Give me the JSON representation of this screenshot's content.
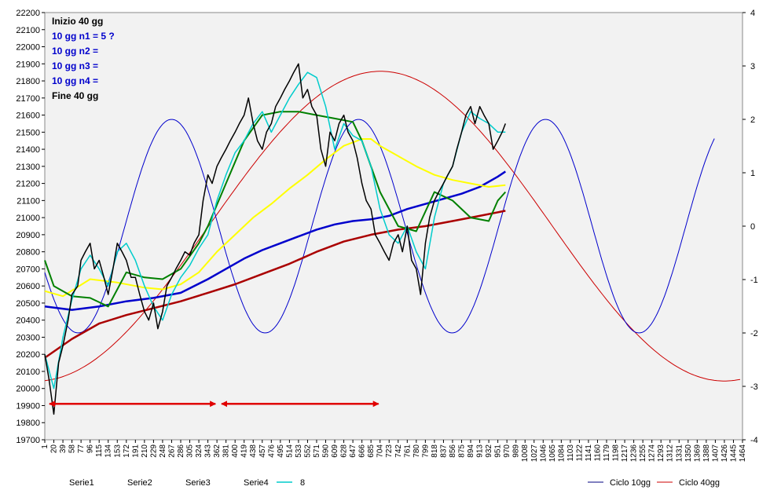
{
  "chart_data": {
    "type": "line",
    "y_left": {
      "min": 19700,
      "max": 22200,
      "step": 100
    },
    "y_right": {
      "min": -4,
      "max": 4,
      "step": 1
    },
    "x_ticks": [
      "1",
      "20",
      "39",
      "58",
      "77",
      "96",
      "115",
      "134",
      "153",
      "172",
      "191",
      "210",
      "229",
      "248",
      "267",
      "286",
      "305",
      "324",
      "343",
      "362",
      "381",
      "400",
      "419",
      "438",
      "457",
      "476",
      "495",
      "514",
      "533",
      "552",
      "571",
      "590",
      "609",
      "628",
      "647",
      "666",
      "685",
      "704",
      "723",
      "742",
      "761",
      "780",
      "799",
      "818",
      "837",
      "856",
      "875",
      "894",
      "913",
      "932",
      "951",
      "970",
      "989",
      "1008",
      "1027",
      "1046",
      "1065",
      "1084",
      "1103",
      "1122",
      "1141",
      "1160",
      "1179",
      "1198",
      "1217",
      "1236",
      "1255",
      "1274",
      "1293",
      "1312",
      "1331",
      "1350",
      "1369",
      "1388",
      "1407",
      "1426",
      "1445",
      "1464"
    ],
    "annotations": [
      {
        "text": "Inizio 40 gg",
        "color": "#000000"
      },
      {
        "text": "10 gg n1 =  5 ?",
        "color": "#0000cc"
      },
      {
        "text": "10 gg n2 =",
        "color": "#0000cc"
      },
      {
        "text": "10 gg n3 =",
        "color": "#0000cc"
      },
      {
        "text": "10 gg n4 =",
        "color": "#0000cc"
      },
      {
        "text": "Fine 40 gg",
        "color": "#000000"
      }
    ],
    "arrows": [
      {
        "from": 1,
        "to": 362,
        "y": 19910,
        "color": "#e00000"
      },
      {
        "from": 362,
        "to": 704,
        "y": 19910,
        "color": "#e00000"
      }
    ],
    "series": [
      {
        "name": "Serie1",
        "color": "#008000",
        "axis": "left",
        "x": [
          1,
          20,
          58,
          96,
          134,
          172,
          210,
          248,
          286,
          324,
          343,
          381,
          419,
          457,
          495,
          533,
          571,
          609,
          647,
          666,
          704,
          742,
          780,
          818,
          856,
          894,
          932,
          951,
          967
        ],
        "values": [
          20750,
          20600,
          20540,
          20530,
          20480,
          20680,
          20650,
          20640,
          20700,
          20850,
          20950,
          21200,
          21450,
          21600,
          21620,
          21620,
          21600,
          21580,
          21560,
          21450,
          21150,
          20950,
          20920,
          21150,
          21100,
          21000,
          20980,
          21100,
          21150
        ]
      },
      {
        "name": "Serie2",
        "color": "#ffff00",
        "axis": "left",
        "x": [
          1,
          39,
          96,
          153,
          210,
          248,
          286,
          324,
          362,
          400,
          438,
          476,
          514,
          552,
          590,
          628,
          666,
          685,
          704,
          742,
          780,
          818,
          856,
          894,
          932,
          967
        ],
        "values": [
          20570,
          20540,
          20640,
          20620,
          20590,
          20580,
          20610,
          20680,
          20800,
          20900,
          21000,
          21080,
          21170,
          21250,
          21340,
          21420,
          21460,
          21460,
          21420,
          21360,
          21300,
          21250,
          21220,
          21200,
          21180,
          21190
        ]
      },
      {
        "name": "Serie3",
        "color": "#0000cc",
        "axis": "left",
        "x": [
          1,
          58,
          115,
          172,
          229,
          286,
          343,
          381,
          419,
          457,
          495,
          533,
          571,
          609,
          647,
          685,
          723,
          761,
          799,
          837,
          875,
          913,
          951,
          967
        ],
        "values": [
          20480,
          20460,
          20480,
          20510,
          20530,
          20560,
          20640,
          20700,
          20760,
          20810,
          20850,
          20890,
          20930,
          20960,
          20980,
          20990,
          21010,
          21050,
          21080,
          21110,
          21140,
          21180,
          21240,
          21270
        ]
      },
      {
        "name": "Serie4",
        "color": "#aa0000",
        "axis": "left",
        "x": [
          1,
          58,
          115,
          172,
          229,
          286,
          343,
          400,
          457,
          514,
          571,
          628,
          685,
          742,
          799,
          856,
          913,
          967
        ],
        "values": [
          20180,
          20290,
          20380,
          20430,
          20470,
          20510,
          20560,
          20610,
          20670,
          20730,
          20800,
          20860,
          20900,
          20930,
          20950,
          20980,
          21010,
          21040
        ]
      },
      {
        "name": "8",
        "color": "#00cccc",
        "axis": "left",
        "x": [
          1,
          20,
          39,
          58,
          77,
          96,
          115,
          134,
          153,
          172,
          191,
          210,
          229,
          248,
          267,
          286,
          305,
          324,
          343,
          362,
          381,
          400,
          419,
          438,
          457,
          476,
          495,
          514,
          533,
          552,
          571,
          590,
          609,
          628,
          647,
          666,
          685,
          704,
          723,
          742,
          761,
          780,
          799,
          818,
          837,
          856,
          875,
          894,
          913,
          932,
          951,
          967
        ],
        "values": [
          20200,
          20000,
          20300,
          20520,
          20700,
          20780,
          20700,
          20600,
          20800,
          20850,
          20750,
          20600,
          20480,
          20400,
          20550,
          20650,
          20720,
          20820,
          20900,
          21100,
          21250,
          21380,
          21450,
          21550,
          21620,
          21500,
          21600,
          21700,
          21780,
          21850,
          21820,
          21650,
          21400,
          21550,
          21480,
          21450,
          21300,
          21050,
          20900,
          20850,
          20950,
          20800,
          20700,
          21000,
          21200,
          21300,
          21500,
          21620,
          21580,
          21550,
          21500,
          21500
        ]
      },
      {
        "name": "Ciclo 10gg",
        "color": "#0000cc",
        "axis": "right"
      },
      {
        "name": "Ciclo 40gg",
        "color": "#cc0000",
        "axis": "right"
      }
    ],
    "price": {
      "color": "#000000",
      "x": [
        1,
        10,
        20,
        30,
        39,
        50,
        58,
        70,
        77,
        86,
        96,
        105,
        115,
        125,
        134,
        144,
        153,
        163,
        172,
        182,
        191,
        200,
        210,
        219,
        229,
        238,
        248,
        257,
        267,
        276,
        286,
        295,
        305,
        314,
        324,
        333,
        343,
        352,
        362,
        371,
        381,
        390,
        400,
        409,
        419,
        428,
        438,
        447,
        457,
        466,
        476,
        485,
        495,
        504,
        514,
        523,
        533,
        542,
        552,
        561,
        571,
        580,
        590,
        599,
        609,
        618,
        628,
        637,
        647,
        656,
        666,
        675,
        685,
        694,
        704,
        713,
        723,
        732,
        742,
        751,
        761,
        770,
        780,
        789,
        799,
        808,
        818,
        827,
        837,
        846,
        856,
        865,
        875,
        884,
        894,
        903,
        913,
        922,
        932,
        941,
        951,
        960,
        967
      ],
      "values": [
        20200,
        20050,
        19850,
        20150,
        20250,
        20400,
        20550,
        20600,
        20750,
        20800,
        20850,
        20700,
        20750,
        20650,
        20550,
        20700,
        20850,
        20800,
        20750,
        20650,
        20650,
        20550,
        20450,
        20400,
        20500,
        20350,
        20450,
        20600,
        20650,
        20700,
        20750,
        20800,
        20780,
        20850,
        20900,
        21100,
        21250,
        21200,
        21300,
        21350,
        21400,
        21450,
        21500,
        21550,
        21600,
        21700,
        21550,
        21450,
        21400,
        21500,
        21550,
        21650,
        21700,
        21750,
        21800,
        21850,
        21900,
        21700,
        21750,
        21650,
        21600,
        21400,
        21300,
        21500,
        21450,
        21550,
        21600,
        21500,
        21450,
        21350,
        21200,
        21100,
        21050,
        20900,
        20850,
        20800,
        20750,
        20850,
        20900,
        20800,
        20950,
        20750,
        20700,
        20550,
        20850,
        21000,
        21100,
        21150,
        21200,
        21250,
        21300,
        21400,
        21500,
        21600,
        21650,
        21550,
        21650,
        21600,
        21550,
        21400,
        21450,
        21500,
        21550
      ]
    },
    "cycle_10gg": {
      "period": 392,
      "amplitude": 2.0,
      "x_start": 1,
      "x_end": 1407,
      "peak_at": 267
    },
    "cycle_40gg": {
      "amplitude": 2.9,
      "x_start": 1,
      "x_end": 1464,
      "peak_at": 705,
      "trough_at": 1426
    },
    "legend": {
      "left": [
        {
          "name": "Serie1",
          "marker": false
        },
        {
          "name": "Serie2",
          "marker": false
        },
        {
          "name": "Serie3",
          "marker": false
        },
        {
          "name": "Serie4",
          "marker": false
        },
        {
          "name": "8",
          "marker": true,
          "color": "#00cccc"
        }
      ],
      "right": [
        {
          "name": "Ciclo 10gg",
          "color": "#000080"
        },
        {
          "name": "Ciclo 40gg",
          "color": "#cc0000"
        }
      ]
    }
  }
}
